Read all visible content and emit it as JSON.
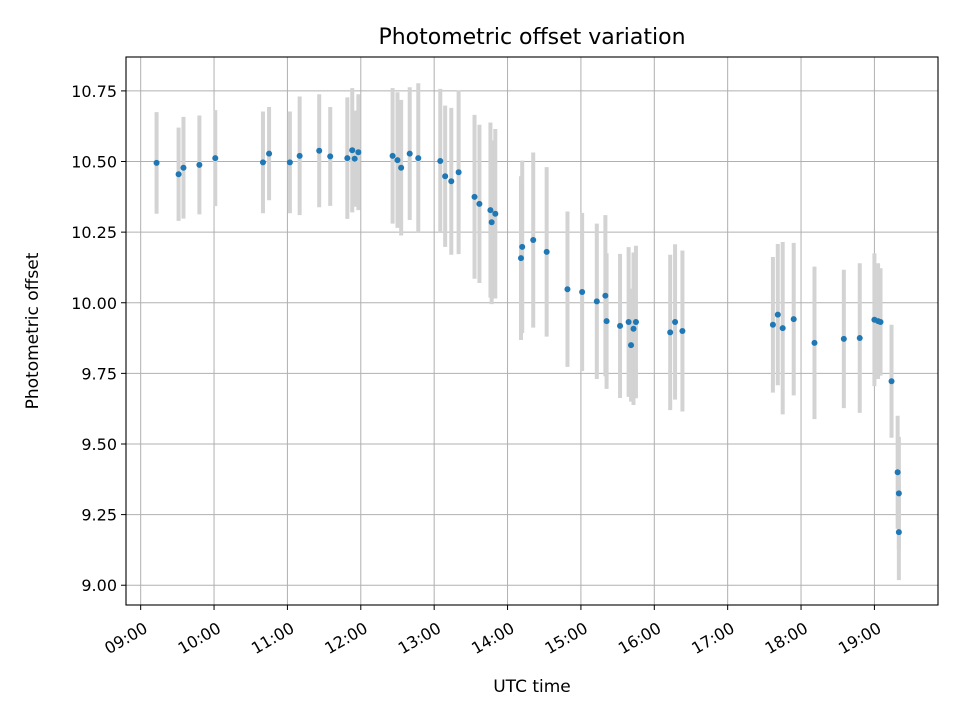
{
  "chart_data": {
    "type": "scatter",
    "title": "Photometric offset variation",
    "xlabel": "UTC time",
    "ylabel": "Photometric offset",
    "x_ticks": [
      "09:00",
      "10:00",
      "11:00",
      "12:00",
      "13:00",
      "14:00",
      "15:00",
      "16:00",
      "17:00",
      "18:00",
      "19:00"
    ],
    "y_ticks": [
      "9.00",
      "9.25",
      "9.50",
      "9.75",
      "10.00",
      "10.25",
      "10.50",
      "10.75"
    ],
    "xlim": [
      "08:48",
      "19:52"
    ],
    "ylim": [
      8.93,
      10.87
    ],
    "grid": true,
    "colors": {
      "points": "#1f77b4",
      "errorbars": "#d3d3d3",
      "grid": "#b0b0b0"
    },
    "series": [
      {
        "x": [
          "09:13",
          "09:31",
          "09:35",
          "09:48",
          "10:01",
          "10:40",
          "10:45",
          "11:02",
          "11:10",
          "11:26",
          "11:35",
          "11:49",
          "11:53",
          "11:55",
          "11:58",
          "12:26",
          "12:30",
          "12:33",
          "12:40",
          "12:47",
          "13:05",
          "13:09",
          "13:14",
          "13:20",
          "13:33",
          "13:37",
          "13:46",
          "13:47",
          "13:50",
          "14:11",
          "14:12",
          "14:21",
          "14:32",
          "14:49",
          "15:01",
          "15:13",
          "15:20",
          "15:21",
          "15:32",
          "15:39",
          "15:41",
          "15:43",
          "15:45",
          "16:13",
          "16:17",
          "16:23",
          "17:37",
          "17:41",
          "17:45",
          "17:54",
          "18:11",
          "18:35",
          "18:48",
          "19:00",
          "19:03",
          "19:05",
          "19:14",
          "19:19",
          "19:20",
          "19:20"
        ],
        "y": [
          10.495,
          10.455,
          10.478,
          10.488,
          10.512,
          10.497,
          10.528,
          10.497,
          10.52,
          10.538,
          10.518,
          10.512,
          10.54,
          10.51,
          10.533,
          10.52,
          10.505,
          10.478,
          10.528,
          10.512,
          10.502,
          10.448,
          10.43,
          10.462,
          10.375,
          10.35,
          10.328,
          10.285,
          10.315,
          10.158,
          10.198,
          10.222,
          10.18,
          10.048,
          10.038,
          10.005,
          10.025,
          9.935,
          9.918,
          9.932,
          9.85,
          9.908,
          9.932,
          9.895,
          9.932,
          9.9,
          9.922,
          9.958,
          9.91,
          9.942,
          9.858,
          9.872,
          9.875,
          9.94,
          9.935,
          9.932,
          9.722,
          9.4,
          9.325,
          9.188
        ],
        "err": [
          0.18,
          0.165,
          0.18,
          0.175,
          0.17,
          0.18,
          0.165,
          0.18,
          0.21,
          0.2,
          0.175,
          0.215,
          0.22,
          0.17,
          0.205,
          0.24,
          0.24,
          0.24,
          0.235,
          0.265,
          0.255,
          0.25,
          0.26,
          0.29,
          0.29,
          0.28,
          0.31,
          0.29,
          0.3,
          0.29,
          0.305,
          0.31,
          0.3,
          0.275,
          0.28,
          0.275,
          0.285,
          0.24,
          0.255,
          0.265,
          0.2,
          0.27,
          0.27,
          0.275,
          0.275,
          0.285,
          0.24,
          0.25,
          0.305,
          0.27,
          0.27,
          0.245,
          0.265,
          0.235,
          0.205,
          0.19,
          0.2,
          0.2,
          0.2,
          0.17
        ]
      }
    ]
  }
}
